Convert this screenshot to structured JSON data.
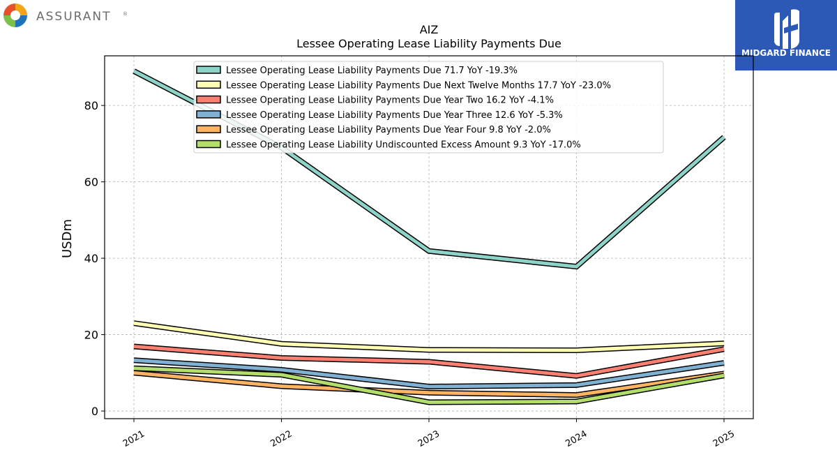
{
  "brand_left": {
    "name": "ASSURANT",
    "mark": "®"
  },
  "brand_right": {
    "name": "MIDGARD FINANCE",
    "color": "#2b59b5"
  },
  "chart_data": {
    "type": "line",
    "title": "AIZ",
    "subtitle": "Lessee Operating Lease Liability Payments Due",
    "xlabel": "",
    "ylabel": "USDm",
    "x": [
      "2021",
      "2022",
      "2023",
      "2024",
      "2025"
    ],
    "ylim": [
      -2,
      93
    ],
    "yticks": [
      0,
      20,
      40,
      60,
      80
    ],
    "grid": true,
    "legend_position": "top",
    "series": [
      {
        "name": "Lessee Operating Lease Liability Payments Due  71.7 YoY -19.3%",
        "color": "#8dd3c7",
        "values": [
          89.0,
          69.0,
          41.9,
          37.8,
          71.7
        ]
      },
      {
        "name": "Lessee Operating Lease Liability Payments Due Next Twelve Months  17.7 YoY -23.0%",
        "color": "#ffffb3",
        "values": [
          23.0,
          17.6,
          16.0,
          15.9,
          17.7
        ]
      },
      {
        "name": "Lessee Operating Lease Liability Payments Due Year Two  16.2 YoY -4.1%",
        "color": "#fb8072",
        "values": [
          16.9,
          13.9,
          12.9,
          9.2,
          16.2
        ]
      },
      {
        "name": "Lessee Operating Lease Liability Payments Due Year Three  12.6 YoY -5.3%",
        "color": "#80b1d3",
        "values": [
          13.3,
          10.8,
          6.4,
          6.8,
          12.6
        ]
      },
      {
        "name": "Lessee Operating Lease Liability Payments Due Year Four  9.8 YoY -2.0%",
        "color": "#fdb462",
        "values": [
          10.0,
          6.5,
          4.8,
          4.2,
          9.8
        ]
      },
      {
        "name": "Lessee Operating Lease Liability Undiscounted Excess Amount  9.3 YoY -17.0%",
        "color": "#b3de69",
        "values": [
          11.2,
          9.5,
          2.3,
          2.5,
          9.3
        ]
      }
    ]
  }
}
